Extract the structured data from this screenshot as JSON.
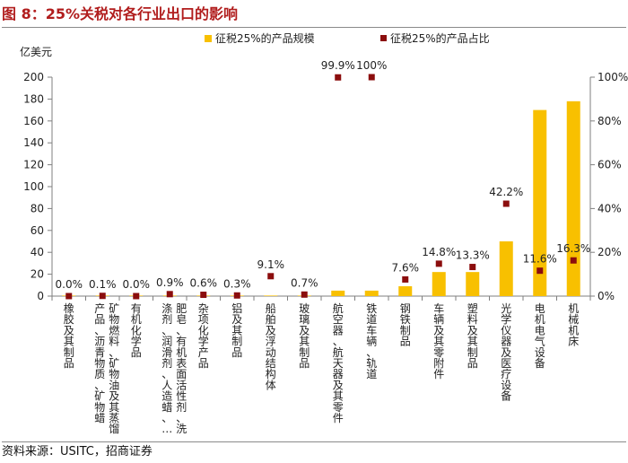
{
  "header": {
    "title": "图 8：25%关税对各行业出口的影响"
  },
  "footer": {
    "source": "资料来源：USITC，招商证券"
  },
  "colors": {
    "bar": "#f8c000",
    "point": "#8b0d0d",
    "axis": "#7f7f7f",
    "text": "#222222"
  },
  "chart_data": {
    "type": "bar",
    "title": "25%关税对各行业出口的影响",
    "ylabel": "亿美元",
    "ylim": [
      0,
      200
    ],
    "yticks": [
      0,
      20,
      40,
      60,
      80,
      100,
      120,
      140,
      160,
      180,
      200
    ],
    "y2lim": [
      0,
      100
    ],
    "y2ticks": [
      "0%",
      "20%",
      "40%",
      "60%",
      "80%",
      "100%"
    ],
    "y2tick_values": [
      0,
      20,
      40,
      60,
      80,
      100
    ],
    "legend_position": "top",
    "categories": [
      "橡胶及其制品",
      "矿物燃料、矿物油及其蒸馏产品、沥青物质、矿物蜡",
      "有机化学品",
      "肥皂、有机表面活性剂、洗涤剂、润滑剂、人造蜡、…",
      "杂项化学产品",
      "铝及其制品",
      "船舶及浮动结构体",
      "玻璃及其制品",
      "航空器、航天器及其零件",
      "铁道车辆、轨道",
      "钢铁制品",
      "车辆及其零附件",
      "塑料及其制品",
      "光学仪器及医疗设备",
      "电机电气设备",
      "机械机床"
    ],
    "category_lines": [
      [
        "橡胶及其制品"
      ],
      [
        "矿物燃料、矿物油及其蒸馏",
        "产品、沥青物质、矿物蜡"
      ],
      [
        "有机化学品"
      ],
      [
        "肥皂、有机表面活性剂、洗",
        "涤剂、润滑剂、人造蜡、…"
      ],
      [
        "杂项化学产品"
      ],
      [
        "铝及其制品"
      ],
      [
        "船舶及浮动结构体"
      ],
      [
        "玻璃及其制品"
      ],
      [
        "航空器、航天器及其零件"
      ],
      [
        "铁道车辆、轨道"
      ],
      [
        "钢铁制品"
      ],
      [
        "车辆及其零附件"
      ],
      [
        "塑料及其制品"
      ],
      [
        "光学仪器及医疗设备"
      ],
      [
        "电机电气设备"
      ],
      [
        "机械机床"
      ]
    ],
    "series": [
      {
        "name": "征税25%的产品规模",
        "type": "bar",
        "axis": "left",
        "values": [
          0.5,
          0.5,
          0.5,
          0.5,
          0.5,
          0.5,
          0.5,
          0.5,
          5,
          5,
          9,
          22,
          22,
          50,
          170,
          178
        ]
      },
      {
        "name": "征税25%的产品占比",
        "type": "scatter",
        "axis": "right",
        "values": [
          0.0,
          0.1,
          0.0,
          0.9,
          0.6,
          0.3,
          9.1,
          0.7,
          99.9,
          100,
          7.6,
          14.8,
          13.3,
          42.2,
          11.6,
          16.3
        ],
        "labels": [
          "0.0%",
          "0.1%",
          "0.0%",
          "0.9%",
          "0.6%",
          "0.3%",
          "9.1%",
          "0.7%",
          "99.9%",
          "100%",
          "7.6%",
          "14.8%",
          "13.3%",
          "42.2%",
          "11.6%",
          "16.3%"
        ]
      }
    ]
  }
}
